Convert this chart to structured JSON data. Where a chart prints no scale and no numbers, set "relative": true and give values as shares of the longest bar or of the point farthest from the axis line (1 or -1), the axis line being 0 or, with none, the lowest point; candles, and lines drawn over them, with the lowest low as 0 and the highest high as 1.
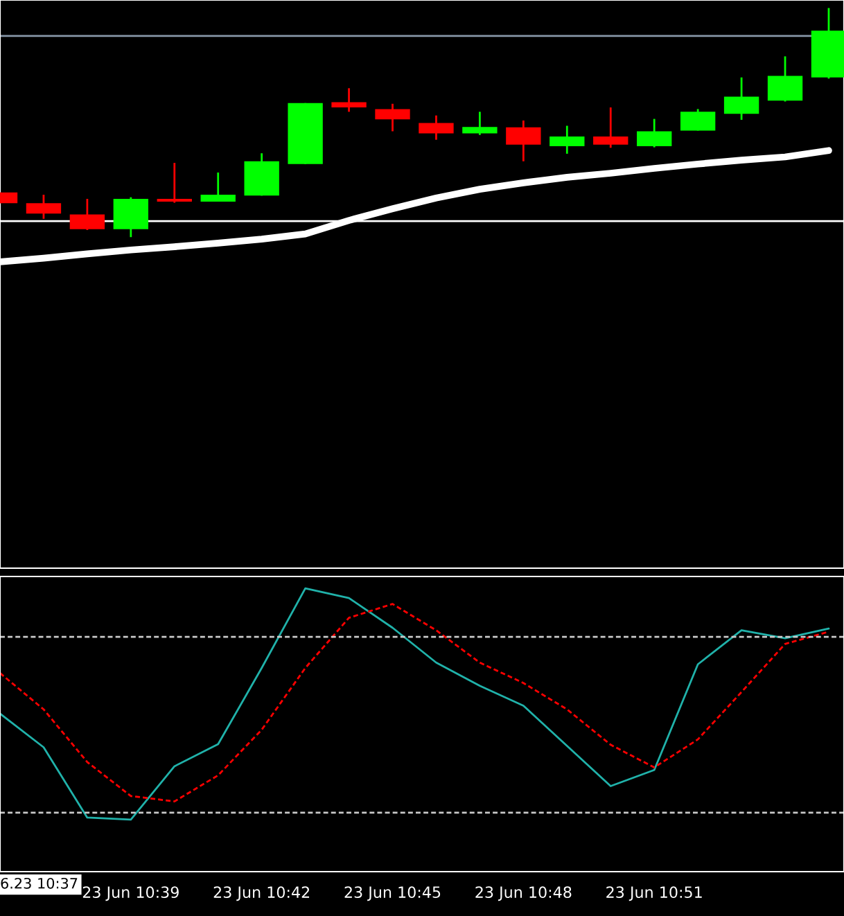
{
  "chart_data": [
    {
      "type": "candlestick",
      "relative": true,
      "tick_labels": false,
      "categories": [
        null,
        null,
        null,
        null,
        null,
        null,
        null,
        null,
        null,
        null,
        null,
        null,
        null,
        null,
        null,
        null,
        null,
        null,
        null,
        null
      ],
      "ohlc": [
        [
          0.195,
          0.195,
          0.148,
          0.148
        ],
        [
          0.148,
          0.185,
          0.08,
          0.103
        ],
        [
          0.099,
          0.167,
          0.031,
          0.035
        ],
        [
          0.035,
          0.174,
          0.0,
          0.167
        ],
        [
          0.167,
          0.324,
          0.15,
          0.155
        ],
        [
          0.155,
          0.282,
          0.155,
          0.185
        ],
        [
          0.181,
          0.366,
          0.181,
          0.331
        ],
        [
          0.319,
          0.585,
          0.319,
          0.585
        ],
        [
          0.589,
          0.65,
          0.547,
          0.566
        ],
        [
          0.559,
          0.582,
          0.462,
          0.514
        ],
        [
          0.498,
          0.531,
          0.425,
          0.453
        ],
        [
          0.453,
          0.547,
          0.446,
          0.481
        ],
        [
          0.479,
          0.509,
          0.331,
          0.404
        ],
        [
          0.397,
          0.486,
          0.364,
          0.439
        ],
        [
          0.439,
          0.566,
          0.39,
          0.404
        ],
        [
          0.397,
          0.516,
          0.392,
          0.462
        ],
        [
          0.465,
          0.559,
          0.465,
          0.547
        ],
        [
          0.538,
          0.697,
          0.512,
          0.613
        ],
        [
          0.596,
          0.789,
          0.592,
          0.704
        ],
        [
          0.697,
          1.0,
          0.692,
          0.901
        ]
      ],
      "colors": [
        "#ff0000",
        "#ff0000",
        "#ff0000",
        "#00ff00",
        "#ff0000",
        "#00ff00",
        "#00ff00",
        "#00ff00",
        "#ff0000",
        "#ff0000",
        "#ff0000",
        "#00ff00",
        "#ff0000",
        "#00ff00",
        "#ff0000",
        "#00ff00",
        "#00ff00",
        "#00ff00",
        "#00ff00",
        "#00ff00"
      ],
      "series": [
        {
          "type": "line",
          "color": "#ffffff",
          "values": [
            -0.108,
            -0.092,
            -0.073,
            -0.056,
            -0.042,
            -0.026,
            -0.009,
            0.014,
            0.073,
            0.124,
            0.171,
            0.209,
            0.237,
            0.261,
            0.279,
            0.3,
            0.319,
            0.336,
            0.35,
            0.378
          ]
        }
      ],
      "ref_lines": [
        {
          "axis": "y",
          "value": 0.878,
          "color": "#8797a8",
          "line_style": "solid"
        },
        {
          "axis": "y",
          "value": 0.07,
          "color": "#ffffff",
          "line_style": "solid"
        }
      ]
    },
    {
      "type": "line",
      "relative": true,
      "tick_labels": "x",
      "categories": [
        null,
        null,
        null,
        "23 Jun 10:39",
        null,
        null,
        "23 Jun 10:42",
        null,
        null,
        "23 Jun 10:45",
        null,
        null,
        "23 Jun 10:48",
        null,
        null,
        "23 Jun 10:51",
        null,
        null,
        null,
        null
      ],
      "series": [
        {
          "color": "#20b2aa",
          "line_style": "solid",
          "values": [
            0.558,
            0.439,
            0.191,
            0.184,
            0.372,
            0.45,
            0.719,
            1.0,
            0.966,
            0.861,
            0.738,
            0.656,
            0.586,
            0.444,
            0.302,
            0.359,
            0.732,
            0.852,
            0.824,
            0.858
          ]
        },
        {
          "color": "#ff0000",
          "line_style": "dashed",
          "values": [
            0.701,
            0.573,
            0.387,
            0.267,
            0.248,
            0.34,
            0.501,
            0.719,
            0.896,
            0.945,
            0.852,
            0.738,
            0.666,
            0.573,
            0.448,
            0.368,
            0.467,
            0.634,
            0.804,
            0.847
          ]
        }
      ],
      "ref_lines": [
        {
          "axis": "y",
          "value": 0.829,
          "color": "#c8c8c8",
          "line_style": "dashed"
        },
        {
          "axis": "y",
          "value": 0.208,
          "color": "#c8c8c8",
          "line_style": "dashed"
        }
      ],
      "annotations": [
        "6.23 10:37"
      ]
    }
  ]
}
